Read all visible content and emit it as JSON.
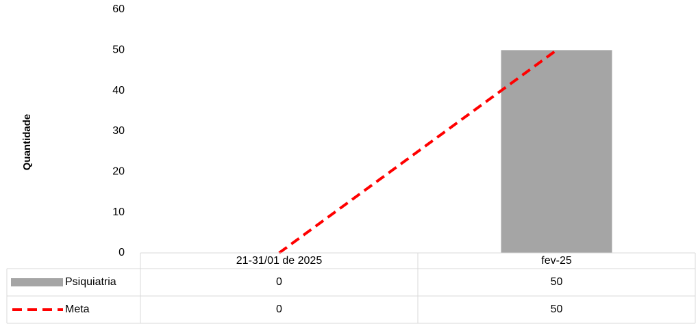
{
  "chart_data": {
    "type": "bar",
    "y_label": "Quantidade",
    "categories": [
      "21-31/01 de 2025",
      "fev-25"
    ],
    "series": [
      {
        "name": "Psiquiatria",
        "type": "bar",
        "color": "#a5a5a5",
        "values": [
          0,
          50
        ]
      },
      {
        "name": "Meta",
        "type": "line",
        "color": "#ff0000",
        "line_style": "dashed",
        "values": [
          0,
          50
        ]
      }
    ],
    "ylim": [
      0,
      60
    ],
    "yticks": [
      0,
      10,
      20,
      30,
      40,
      50,
      60
    ],
    "grid": false,
    "data_table": true
  }
}
